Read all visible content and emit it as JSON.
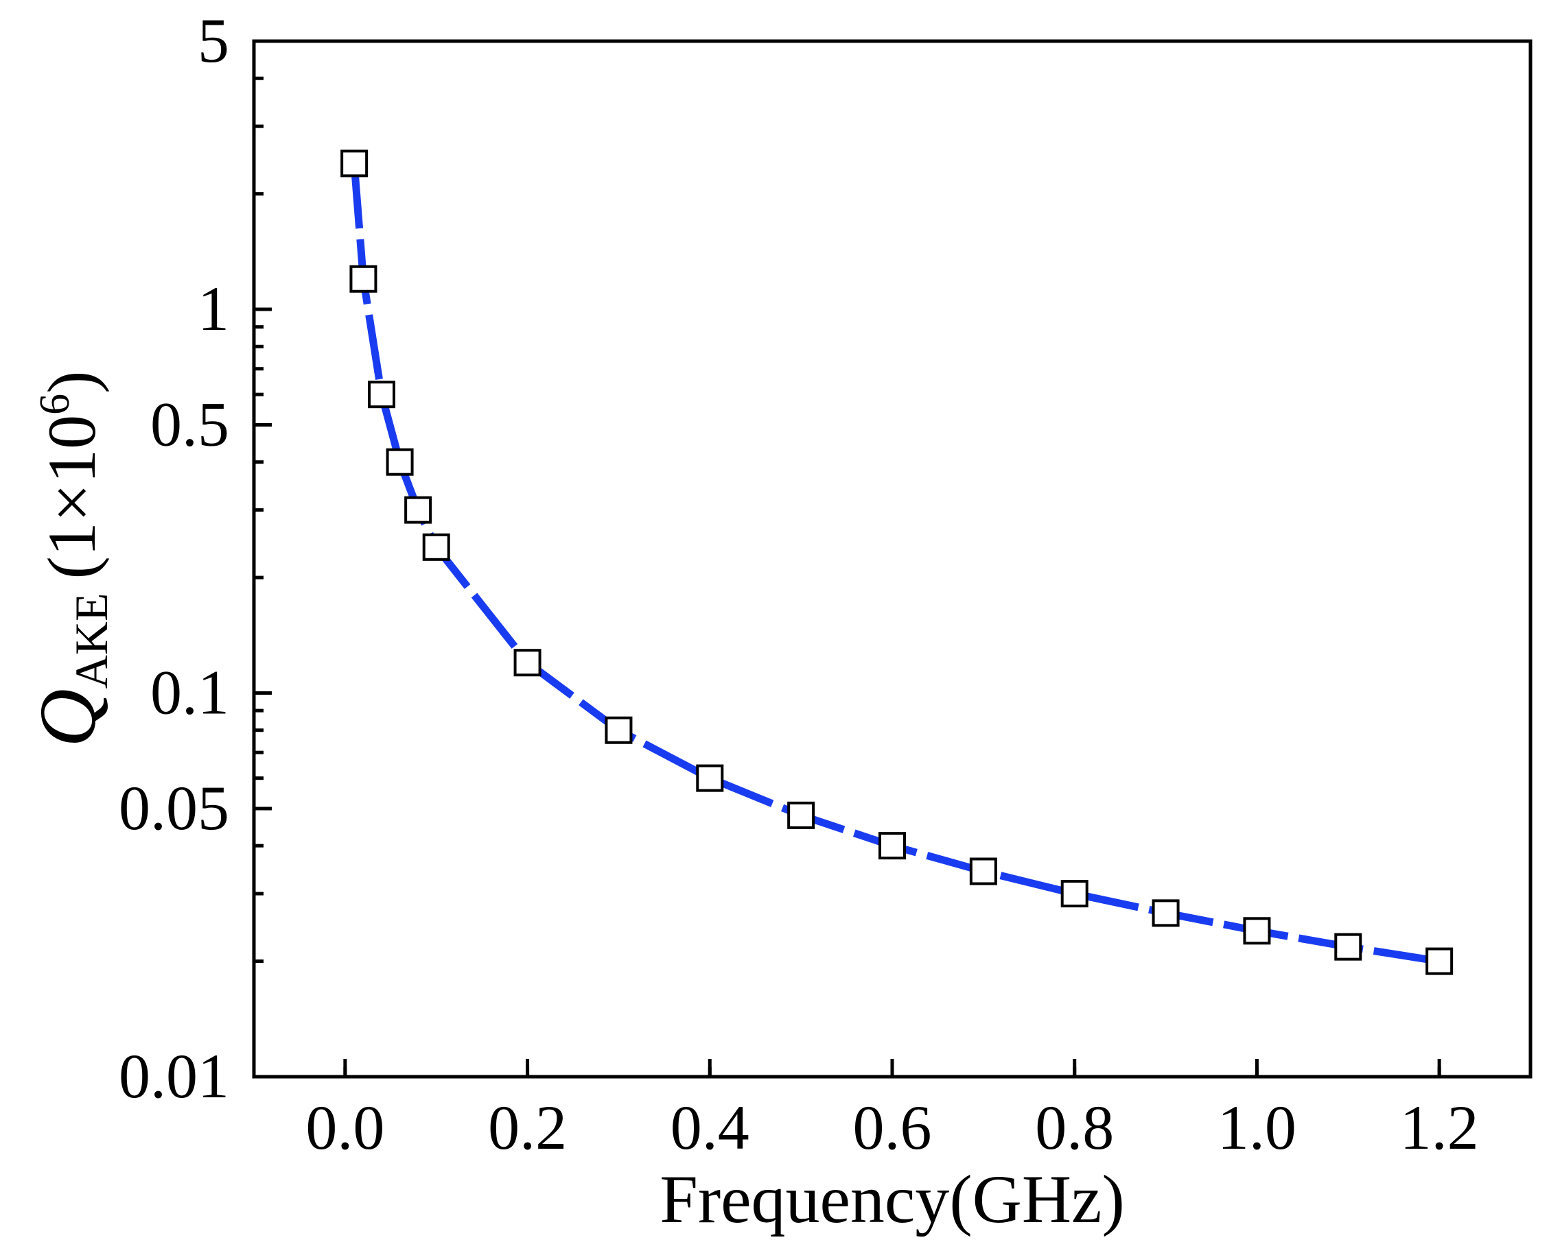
{
  "chart_data": {
    "type": "line",
    "title": "",
    "xlabel": "Frequency(GHz)",
    "ylabel": {
      "symbol": "Q",
      "subscript": "AKE",
      "unit_prefix": "(1×10",
      "unit_exponent": "6",
      "unit_suffix": ")"
    },
    "xlim": [
      -0.1,
      1.3
    ],
    "ylim": [
      0.01,
      5
    ],
    "yscale": "log",
    "x_ticks": [
      0.0,
      0.2,
      0.4,
      0.6,
      0.8,
      1.0,
      1.2
    ],
    "x_tick_labels": [
      "0.0",
      "0.2",
      "0.4",
      "0.6",
      "0.8",
      "1.0",
      "1.2"
    ],
    "y_ticks": [
      0.01,
      0.05,
      0.1,
      0.5,
      1,
      5
    ],
    "y_tick_labels": [
      "0.01",
      "0.05",
      "0.1",
      "0.5",
      "1",
      "5"
    ],
    "grid": false,
    "series": [
      {
        "name": "Q_AKE",
        "marker": "open-square",
        "line_style": "dashed",
        "line_color": "#1a3cf0",
        "marker_color": "#000000",
        "x": [
          0.01,
          0.02,
          0.04,
          0.06,
          0.08,
          0.1,
          0.2,
          0.3,
          0.4,
          0.5,
          0.6,
          0.7,
          0.8,
          0.9,
          1.0,
          1.1,
          1.2
        ],
        "y": [
          2.4,
          1.2,
          0.6,
          0.4,
          0.3,
          0.24,
          0.12,
          0.08,
          0.06,
          0.048,
          0.04,
          0.0343,
          0.03,
          0.0267,
          0.024,
          0.0218,
          0.02
        ]
      }
    ]
  }
}
